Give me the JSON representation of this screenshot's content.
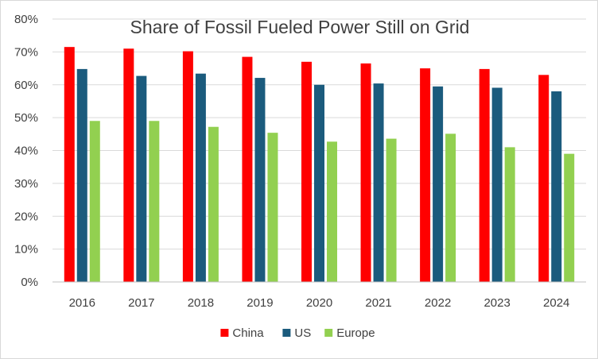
{
  "chart_data": {
    "type": "bar",
    "title": "Share of Fossil Fueled Power Still on Grid",
    "xlabel": "",
    "ylabel": "",
    "categories": [
      "2016",
      "2017",
      "2018",
      "2019",
      "2020",
      "2021",
      "2022",
      "2023",
      "2024"
    ],
    "series": [
      {
        "name": "China",
        "color": "#ff0000",
        "values": [
          71.5,
          71.0,
          70.2,
          68.5,
          67.0,
          66.5,
          65.0,
          64.8,
          63.0
        ]
      },
      {
        "name": "US",
        "color": "#1b5b7d",
        "values": [
          64.8,
          62.7,
          63.4,
          62.1,
          60.0,
          60.4,
          59.5,
          59.1,
          58.0
        ]
      },
      {
        "name": "Europe",
        "color": "#92d050",
        "values": [
          49.0,
          49.0,
          47.2,
          45.4,
          42.7,
          43.6,
          45.1,
          41.0,
          39.0
        ]
      }
    ],
    "ylim": [
      0,
      80
    ],
    "y_ticks": [
      "0%",
      "10%",
      "20%",
      "30%",
      "40%",
      "50%",
      "60%",
      "70%",
      "80%"
    ],
    "grid": true,
    "legend_position": "bottom"
  }
}
